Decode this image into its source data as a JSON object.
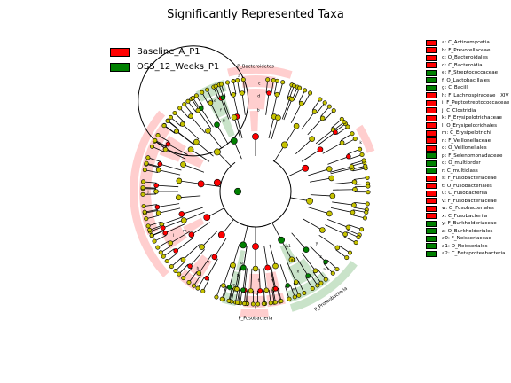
{
  "chart_data": {
    "type": "cladogram",
    "title": "Significantly Represented Taxa",
    "colors": {
      "enriched_a": "#ff0000",
      "enriched_b": "#008000",
      "not_significant": "#c6c200"
    },
    "groups": [
      {
        "name": "Baseline_A_P1",
        "color": "#ff0000"
      },
      {
        "name": "OSS_12_Weeks_P1",
        "color": "#008000"
      }
    ],
    "clades": [
      {
        "key": "a",
        "label": "C_Actinomycetia",
        "group": "Baseline_A_P1"
      },
      {
        "key": "b",
        "label": "F_Prevotellaceae",
        "group": "Baseline_A_P1"
      },
      {
        "key": "c",
        "label": "O_Bacteroidales",
        "group": "Baseline_A_P1"
      },
      {
        "key": "d",
        "label": "C_Bacteroidia",
        "group": "Baseline_A_P1"
      },
      {
        "key": "e",
        "label": "F_Streptococcaceae",
        "group": "OSS_12_Weeks_P1"
      },
      {
        "key": "f",
        "label": "O_Lactobacillales",
        "group": "OSS_12_Weeks_P1"
      },
      {
        "key": "g",
        "label": "C_Bacilli",
        "group": "OSS_12_Weeks_P1"
      },
      {
        "key": "h",
        "label": "F_Lachnospiraceae__XIV",
        "group": "Baseline_A_P1"
      },
      {
        "key": "i",
        "label": "F_Peptostreptococcaceae",
        "group": "Baseline_A_P1"
      },
      {
        "key": "j",
        "label": "C_Clostridia",
        "group": "Baseline_A_P1"
      },
      {
        "key": "k",
        "label": "F_Erysipelotrichaceae",
        "group": "Baseline_A_P1"
      },
      {
        "key": "l",
        "label": "O_Erysipelotrichales",
        "group": "Baseline_A_P1"
      },
      {
        "key": "m",
        "label": "C_Erysipelotrichi",
        "group": "Baseline_A_P1"
      },
      {
        "key": "n",
        "label": "F_Veillonellaceae",
        "group": "Baseline_A_P1"
      },
      {
        "key": "o",
        "label": "O_Veillonellales",
        "group": "Baseline_A_P1"
      },
      {
        "key": "p",
        "label": "F_Selenomonadaceae",
        "group": "OSS_12_Weeks_P1"
      },
      {
        "key": "q",
        "label": "O_multiorder",
        "group": "OSS_12_Weeks_P1"
      },
      {
        "key": "r",
        "label": "C_multiclass",
        "group": "OSS_12_Weeks_P1"
      },
      {
        "key": "s",
        "label": "F_Fusobacteriaceae",
        "group": "Baseline_A_P1"
      },
      {
        "key": "t",
        "label": "O_Fusobacteriales",
        "group": "Baseline_A_P1"
      },
      {
        "key": "u",
        "label": "C_Fusobacteriia",
        "group": "Baseline_A_P1"
      },
      {
        "key": "v",
        "label": "F_Fusobacteriaceae",
        "group": "Baseline_A_P1"
      },
      {
        "key": "w",
        "label": "O_Fusobacteriales",
        "group": "Baseline_A_P1"
      },
      {
        "key": "x",
        "label": "C_Fusobacteriia",
        "group": "Baseline_A_P1"
      },
      {
        "key": "y",
        "label": "F_Burkholderiaceae",
        "group": "OSS_12_Weeks_P1"
      },
      {
        "key": "z",
        "label": "O_Burkholderiales",
        "group": "OSS_12_Weeks_P1"
      },
      {
        "key": "a0",
        "label": "F_Neisseriaceae",
        "group": "OSS_12_Weeks_P1"
      },
      {
        "key": "a1",
        "label": "O_Neisseriales",
        "group": "OSS_12_Weeks_P1"
      },
      {
        "key": "a2",
        "label": "C_Betaproteobacteria",
        "group": "OSS_12_Weeks_P1"
      }
    ],
    "phyla": [
      {
        "label": "P_Bacteroidetes",
        "group": "Baseline_A_P1"
      },
      {
        "label": "P_Fusobacteria",
        "group": "Baseline_A_P1"
      },
      {
        "label": "P_Proteobacteria",
        "group": "OSS_12_Weeks_P1"
      }
    ],
    "inner_labels": [
      "i",
      "j",
      "a",
      "c",
      "d",
      "b",
      "e",
      "f",
      "g",
      "k",
      "l",
      "m",
      "h",
      "n",
      "o",
      "p",
      "q",
      "r",
      "s",
      "t",
      "u",
      "v",
      "w",
      "x",
      "a2",
      "a1",
      "a0",
      "z",
      "y"
    ]
  }
}
